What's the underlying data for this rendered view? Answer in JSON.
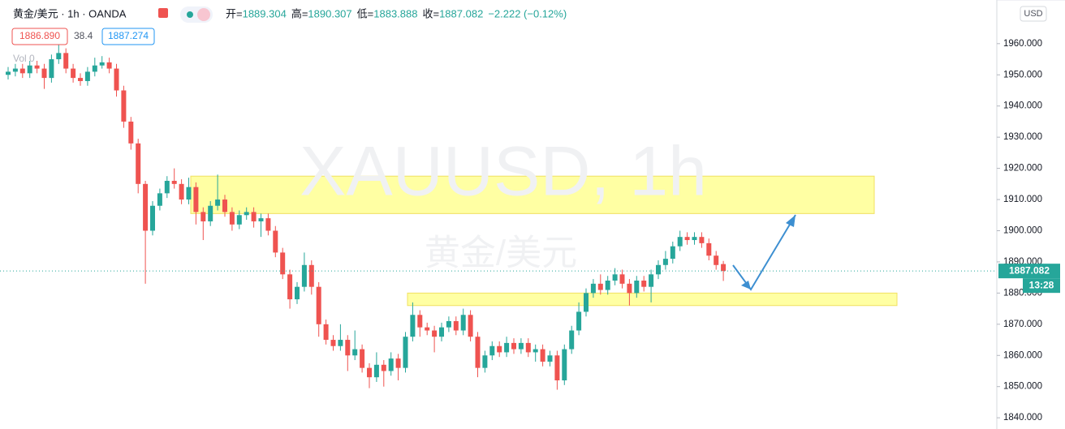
{
  "chart_data": {
    "type": "candlestick",
    "symbol": "黄金/美元 · 1h · OANDA",
    "ohlc_labels": [
      "开=",
      "高=",
      "低=",
      "收="
    ],
    "change": "−2.222 (−0.12%)",
    "bid": "1886.890",
    "spread": "38.4",
    "ask": "1887.274",
    "volume_label": "Vol 0",
    "currency": "USD",
    "watermark": "XAUUSD, 1h",
    "watermark_name": "黄金/美元",
    "countdown": "13:28",
    "up_color": "#26a69a",
    "down_color": "#ef5350",
    "zone_color": "#ffff99",
    "zones": [
      {
        "low": 1905.5,
        "high": 1917.5
      },
      {
        "low": 1876,
        "high": 1880
      }
    ],
    "open": [
      1950,
      1951,
      1952,
      1950.5,
      1953,
      1952,
      1949,
      1955,
      1957,
      1952,
      1949,
      1948,
      1951,
      1953,
      1954,
      1952,
      1945,
      1935,
      1928,
      1915,
      1900,
      1908,
      1912,
      1916,
      1915,
      1910,
      1914,
      1906,
      1903,
      1908,
      1910,
      1906,
      1902,
      1905,
      1906,
      1903,
      1904,
      1900,
      1893,
      1886,
      1878,
      1882,
      1889,
      1882,
      1870,
      1865,
      1863,
      1865,
      1860,
      1862,
      1856,
      1853,
      1857,
      1855,
      1859,
      1856,
      1866,
      1873,
      1869,
      1868,
      1866,
      1869,
      1871,
      1868,
      1873,
      1866,
      1856,
      1860,
      1863,
      1861,
      1864,
      1862,
      1864,
      1861,
      1862,
      1858,
      1860,
      1852,
      1862,
      1868,
      1874,
      1880,
      1883,
      1881,
      1884,
      1886,
      1883,
      1880,
      1884,
      1882,
      1886,
      1889,
      1891,
      1895,
      1898,
      1897,
      1898,
      1896,
      1892,
      1889.304
    ],
    "high": [
      1952.5,
      1953.5,
      1953.5,
      1954.5,
      1954.5,
      1953.5,
      1956.5,
      1960,
      1958.5,
      1953.5,
      1950.5,
      1952.5,
      1955.5,
      1956,
      1955.5,
      1953.5,
      1946.5,
      1936.5,
      1929.5,
      1916,
      1909.5,
      1913.5,
      1917.5,
      1920,
      1916.5,
      1917,
      1915.5,
      1907.5,
      1909.5,
      1918,
      1911.5,
      1907.5,
      1906.5,
      1907.5,
      1907.5,
      1905.5,
      1905.5,
      1901.5,
      1894.5,
      1887.5,
      1883.5,
      1893,
      1890.5,
      1883.5,
      1871.5,
      1866.5,
      1870,
      1866.5,
      1868,
      1863.5,
      1857.5,
      1861,
      1858.5,
      1861,
      1860.5,
      1867.5,
      1877,
      1874.5,
      1870.5,
      1869.5,
      1870.5,
      1872.5,
      1872.5,
      1875,
      1874.5,
      1867.5,
      1861.5,
      1864.5,
      1864.5,
      1866,
      1865.5,
      1865.5,
      1865.5,
      1863.5,
      1863.5,
      1861.5,
      1861.5,
      1863.5,
      1869.5,
      1877,
      1881.5,
      1884.5,
      1886,
      1885.5,
      1888,
      1887.5,
      1884.5,
      1885.5,
      1885.5,
      1887.5,
      1890.5,
      1893.5,
      1896.5,
      1900,
      1899.5,
      1899.5,
      1899.5,
      1897.5,
      1893.5,
      1890.307
    ],
    "low": [
      1948.5,
      1949.5,
      1949,
      1949,
      1950.5,
      1945.5,
      1947.5,
      1953.5,
      1950.5,
      1947.5,
      1946.5,
      1946.5,
      1949.5,
      1952,
      1950.5,
      1943,
      1933,
      1926,
      1912,
      1883,
      1898.5,
      1906.5,
      1910.5,
      1913.5,
      1908.5,
      1908.5,
      1902,
      1897,
      1901.5,
      1906.5,
      1904.5,
      1900,
      1900.5,
      1903.5,
      1901,
      1898,
      1898.5,
      1891.5,
      1884.5,
      1875,
      1876.5,
      1880.5,
      1879.5,
      1866,
      1863.5,
      1861.5,
      1861.5,
      1855,
      1858.5,
      1854.5,
      1849.5,
      1851.5,
      1850,
      1853.5,
      1852,
      1854.5,
      1864.5,
      1866,
      1866.5,
      1861,
      1864.5,
      1867.5,
      1866.5,
      1866.5,
      1864.5,
      1853,
      1854.5,
      1858.5,
      1859.5,
      1859.5,
      1860.5,
      1860.5,
      1859.5,
      1858,
      1856.5,
      1856.5,
      1849,
      1850.5,
      1860.5,
      1866.5,
      1872.5,
      1878.5,
      1879.5,
      1879.5,
      1882.5,
      1881.5,
      1876,
      1878.5,
      1880.5,
      1877,
      1884.5,
      1887.5,
      1889.5,
      1893.5,
      1895.5,
      1895.5,
      1894.5,
      1890.5,
      1887.5,
      1883.888
    ],
    "close": [
      1951,
      1952,
      1950.5,
      1953,
      1952,
      1949,
      1955,
      1957,
      1952,
      1949,
      1948,
      1951,
      1953,
      1954,
      1952,
      1945,
      1935,
      1928,
      1915,
      1900,
      1908,
      1912,
      1916,
      1915,
      1910,
      1914,
      1906,
      1903,
      1908,
      1910,
      1906,
      1902,
      1905,
      1906,
      1903,
      1904,
      1900,
      1893,
      1886,
      1878,
      1882,
      1889,
      1882,
      1870,
      1865,
      1863,
      1865,
      1860,
      1862,
      1856,
      1853,
      1857,
      1855,
      1859,
      1856,
      1866,
      1873,
      1869,
      1868,
      1866,
      1869,
      1871,
      1868,
      1873,
      1866,
      1856,
      1860,
      1863,
      1861,
      1864,
      1862,
      1864,
      1861,
      1862,
      1858,
      1860,
      1852,
      1862,
      1868,
      1874,
      1880,
      1883,
      1881,
      1884,
      1886,
      1883,
      1880,
      1884,
      1882,
      1886,
      1889,
      1891,
      1895,
      1898,
      1897,
      1898,
      1896,
      1892,
      1889,
      1887.082
    ],
    "ylim": [
      1836.4,
      1974
    ],
    "yticks": [
      {
        "value": 1840,
        "label": "1840.000"
      },
      {
        "value": 1850,
        "label": "1850.000"
      },
      {
        "value": 1860,
        "label": "1860.000"
      },
      {
        "value": 1870,
        "label": "1870.000"
      },
      {
        "value": 1880,
        "label": "1880.000"
      },
      {
        "value": 1890,
        "label": "1890.000"
      },
      {
        "value": 1900,
        "label": "1900.000"
      },
      {
        "value": 1910,
        "label": "1910.000"
      },
      {
        "value": 1920,
        "label": "1920.000"
      },
      {
        "value": 1930,
        "label": "1930.000"
      },
      {
        "value": 1940,
        "label": "1940.000"
      },
      {
        "value": 1950,
        "label": "1950.000"
      },
      {
        "value": 1960,
        "label": "1960.000"
      }
    ],
    "grid": false
  }
}
